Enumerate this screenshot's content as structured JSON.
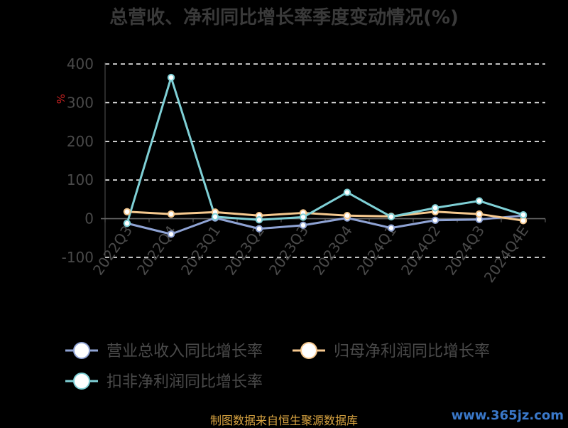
{
  "chart_data": {
    "type": "line",
    "title": "总营收、净利同比增长率季度变动情况(%)",
    "ylabel": "%",
    "xlabel": "",
    "categories": [
      "2022Q3",
      "2022Q4",
      "2023Q1",
      "2023Q2",
      "2023Q3",
      "2023Q4",
      "2024Q1",
      "2024Q2",
      "2024Q3",
      "2024Q4E"
    ],
    "yticks": [
      -100,
      0,
      100,
      200,
      300,
      400
    ],
    "ylim": [
      -100,
      400
    ],
    "grid": true,
    "legend_position": "bottom",
    "series": [
      {
        "name": "营业总收入同比增长率",
        "color": "#8fa3d4",
        "values": [
          -12,
          -40,
          2,
          -26,
          -17,
          2,
          -24,
          -4,
          -2,
          8
        ]
      },
      {
        "name": "归母净利润同比增长率",
        "color": "#f6c98f",
        "values": [
          18,
          12,
          17,
          8,
          15,
          8,
          6,
          18,
          12,
          -5
        ]
      },
      {
        "name": "扣非净利润同比增长率",
        "color": "#7fd0d6",
        "values": [
          -12,
          365,
          5,
          -3,
          4,
          68,
          5,
          28,
          46,
          10
        ]
      }
    ]
  },
  "footer": {
    "source": "制图数据来自恒生聚源数据库",
    "watermark": "www.365jz.com"
  }
}
